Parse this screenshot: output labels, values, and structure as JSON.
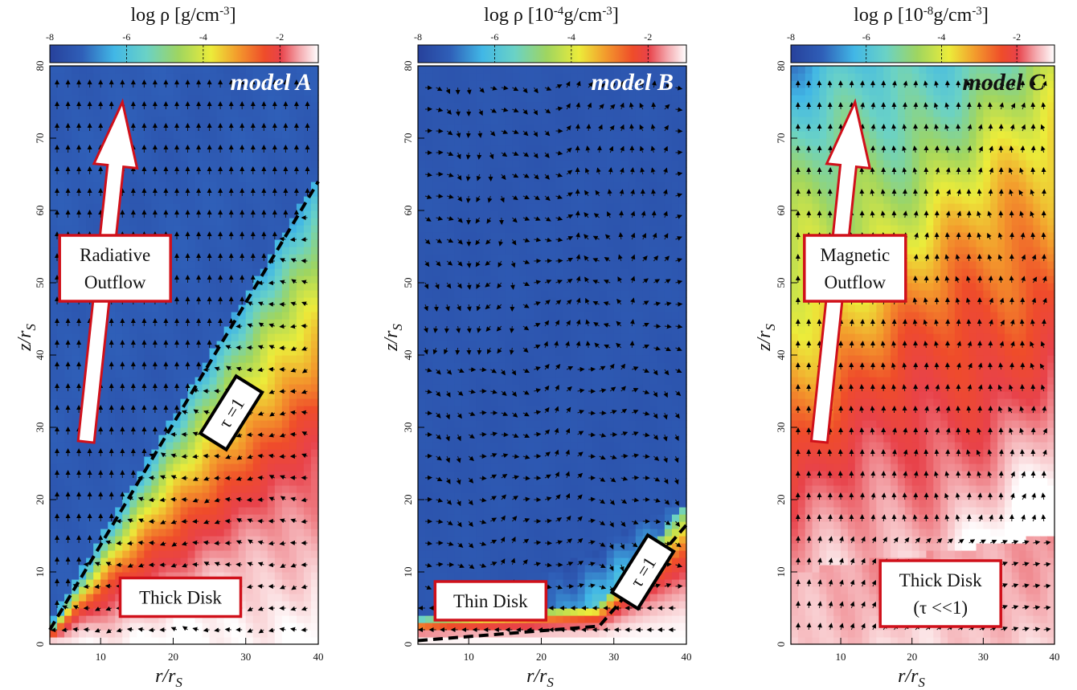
{
  "figure": {
    "colormap": [
      "#27419b",
      "#2f5fb8",
      "#41b7e6",
      "#6ad2c6",
      "#9fd560",
      "#ecec3a",
      "#f39a2c",
      "#ef4c2a",
      "#e8424a",
      "#f4a9ae",
      "#ffffff"
    ],
    "arrow_color": "#ffffff",
    "box_border_color": "#d0101a"
  },
  "chart_data": [
    {
      "type": "heatmap",
      "panel": "A",
      "colorbar": {
        "title_main": "log ρ [g/cm",
        "title_sup": "-3",
        "title_end": "]",
        "range": [
          -8,
          -1
        ],
        "ticks": [
          -8,
          -6,
          -4,
          -2
        ],
        "tick_labels": [
          "-8",
          "-6",
          "-4",
          "-2"
        ]
      },
      "xlabel": "r/r",
      "xlabel_sub": "S",
      "ylabel": "z/r",
      "ylabel_sub": "S",
      "xlim": [
        3,
        40
      ],
      "ylim": [
        0,
        80
      ],
      "xticks": [
        10,
        20,
        30,
        40
      ],
      "xtick_labels": [
        "10",
        "20",
        "30",
        "40"
      ],
      "yticks": [
        0,
        10,
        20,
        30,
        40,
        50,
        60,
        70,
        80
      ],
      "ytick_labels": [
        "0",
        "10",
        "20",
        "30",
        "40",
        "50",
        "60",
        "70",
        "80"
      ],
      "model_label": "model A",
      "model_label_color": "#ffffff",
      "tau_line": [
        [
          3,
          2
        ],
        [
          40,
          64
        ]
      ],
      "tau_label": "τ =1",
      "tau_label_pos": [
        28,
        32
      ],
      "outflow_arrow": [
        [
          8,
          28
        ],
        [
          13,
          75
        ]
      ],
      "outflow_label_lines": [
        "Radiative",
        "Outflow"
      ],
      "outflow_label_pos": [
        12,
        52
      ],
      "disk_label_lines": [
        "Thick Disk"
      ],
      "disk_label_pos": [
        21,
        6.5
      ],
      "density_profile": {
        "bands": [
          {
            "z_rel": 0.0,
            "log_rho": -1.0
          },
          {
            "z_rel": 0.12,
            "log_rho": -1.4
          },
          {
            "z_rel": 0.3,
            "log_rho": -2.3
          },
          {
            "z_rel": 0.55,
            "log_rho": -3.3
          },
          {
            "z_rel": 0.78,
            "log_rho": -4.6
          },
          {
            "z_rel": 0.95,
            "log_rho": -6.2
          },
          {
            "z_rel": 1.0,
            "log_rho": -7.3
          }
        ]
      }
    },
    {
      "type": "heatmap",
      "panel": "B",
      "colorbar": {
        "title_main": "log ρ [10",
        "title_sup": "-4",
        "title_end": "g/cm",
        "title_sup2": "-3",
        "title_end2": "]",
        "range": [
          -8,
          -1
        ],
        "ticks": [
          -8,
          -6,
          -4,
          -2
        ],
        "tick_labels": [
          "-8",
          "-6",
          "-4",
          "-2"
        ]
      },
      "xlabel": "r/r",
      "xlabel_sub": "S",
      "ylabel": "z/r",
      "ylabel_sub": "S",
      "xlim": [
        3,
        40
      ],
      "ylim": [
        0,
        80
      ],
      "xticks": [
        10,
        20,
        30,
        40
      ],
      "xtick_labels": [
        "10",
        "20",
        "30",
        "40"
      ],
      "yticks": [
        0,
        10,
        20,
        30,
        40,
        50,
        60,
        70,
        80
      ],
      "ytick_labels": [
        "0",
        "10",
        "20",
        "30",
        "40",
        "50",
        "60",
        "70",
        "80"
      ],
      "model_label": "model B",
      "model_label_color": "#ffffff",
      "tau_line": [
        [
          3,
          0.5
        ],
        [
          28,
          2.5
        ],
        [
          40,
          16.5
        ]
      ],
      "tau_label": "τ =1",
      "tau_label_pos": [
        34,
        10
      ],
      "disk_label_lines": [
        "Thin Disk"
      ],
      "disk_label_pos": [
        13,
        6
      ]
    },
    {
      "type": "heatmap",
      "panel": "C",
      "colorbar": {
        "title_main": "log ρ [10",
        "title_sup": "-8",
        "title_end": "g/cm",
        "title_sup2": "-3",
        "title_end2": "]",
        "range": [
          -8,
          -1
        ],
        "ticks": [
          -8,
          -6,
          -4,
          -2
        ],
        "tick_labels": [
          "-8",
          "-6",
          "-4",
          "-2"
        ]
      },
      "xlabel": "r/r",
      "xlabel_sub": "S",
      "ylabel": "z/r",
      "ylabel_sub": "S",
      "xlim": [
        3,
        40
      ],
      "ylim": [
        0,
        80
      ],
      "xticks": [
        10,
        20,
        30,
        40
      ],
      "xtick_labels": [
        "10",
        "20",
        "30",
        "40"
      ],
      "yticks": [
        0,
        10,
        20,
        30,
        40,
        50,
        60,
        70,
        80
      ],
      "ytick_labels": [
        "0",
        "10",
        "20",
        "30",
        "40",
        "50",
        "60",
        "70",
        "80"
      ],
      "model_label": "model C",
      "model_label_color": "#111111",
      "outflow_arrow": [
        [
          7,
          28
        ],
        [
          12,
          75
        ]
      ],
      "outflow_label_lines": [
        "Magnetic",
        "Outflow"
      ],
      "outflow_label_pos": [
        12,
        52
      ],
      "disk_label_lines": [
        "Thick Disk",
        "(τ <<1)"
      ],
      "disk_label_pos": [
        24,
        7
      ]
    }
  ]
}
